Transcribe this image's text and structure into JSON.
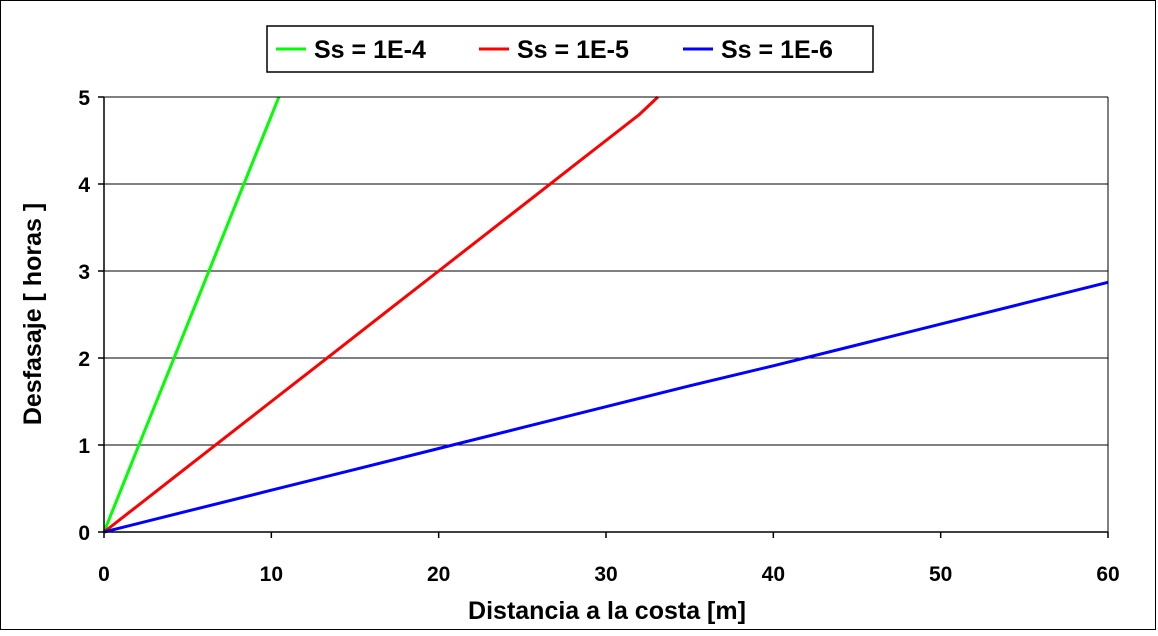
{
  "chart_data": {
    "type": "line",
    "title": "",
    "xlabel": "Distancia a la costa [m]",
    "ylabel": "Desfasaje  [ horas ]",
    "xlim": [
      0,
      60
    ],
    "ylim": [
      0,
      5
    ],
    "x_ticks": [
      "0",
      "10",
      "20",
      "30",
      "40",
      "50",
      "60"
    ],
    "y_ticks": [
      "0",
      "1",
      "2",
      "3",
      "4",
      "5"
    ],
    "grid": "horizontal",
    "legend_position": "top",
    "series": [
      {
        "name": "Ss = 1E-4",
        "color": "#00ff00",
        "x": [
          0,
          2,
          4,
          6,
          8,
          10.45
        ],
        "y": [
          0,
          0.96,
          1.91,
          2.87,
          3.83,
          5.0
        ]
      },
      {
        "name": "Ss = 1E-5",
        "color": "#ff0000",
        "x": [
          0,
          2,
          4,
          6,
          8,
          10,
          12,
          14,
          16,
          18,
          20,
          22,
          24,
          26,
          28,
          30,
          32,
          33.1
        ],
        "y": [
          0,
          0.3,
          0.6,
          0.9,
          1.2,
          1.5,
          1.8,
          2.1,
          2.4,
          2.7,
          3.0,
          3.3,
          3.6,
          3.9,
          4.2,
          4.5,
          4.8,
          5.0
        ]
      },
      {
        "name": "Ss = 1E-6",
        "color": "#0000ff",
        "x": [
          0,
          5,
          10,
          15,
          20,
          25,
          30,
          35,
          40,
          45,
          50,
          55,
          60
        ],
        "y": [
          0,
          0.24,
          0.48,
          0.72,
          0.96,
          1.2,
          1.44,
          1.68,
          1.91,
          2.15,
          2.39,
          2.63,
          2.87
        ]
      }
    ]
  }
}
